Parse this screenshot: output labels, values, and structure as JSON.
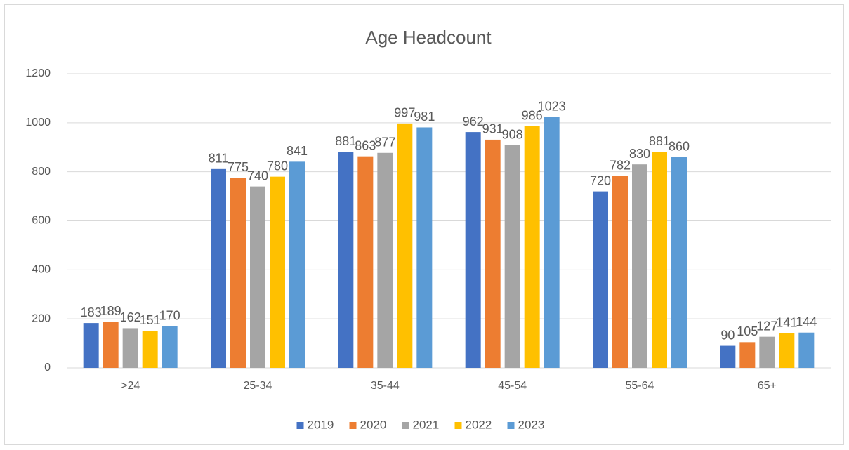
{
  "chart_data": {
    "type": "bar",
    "title": "Age Headcount",
    "categories": [
      ">24",
      "25-34",
      "35-44",
      "45-54",
      "55-64",
      "65+"
    ],
    "series": [
      {
        "name": "2019",
        "color": "#4472c4",
        "values": [
          183,
          811,
          881,
          962,
          720,
          90
        ]
      },
      {
        "name": "2020",
        "color": "#ed7d31",
        "values": [
          189,
          775,
          863,
          931,
          782,
          105
        ]
      },
      {
        "name": "2021",
        "color": "#a5a5a5",
        "values": [
          162,
          740,
          877,
          908,
          830,
          127
        ]
      },
      {
        "name": "2022",
        "color": "#ffc000",
        "values": [
          151,
          780,
          997,
          986,
          881,
          141
        ]
      },
      {
        "name": "2023",
        "color": "#5b9bd5",
        "values": [
          170,
          841,
          981,
          1023,
          860,
          144
        ]
      }
    ],
    "ylim": [
      0,
      1200
    ],
    "yticks": [
      0,
      200,
      400,
      600,
      800,
      1000,
      1200
    ],
    "grid": true,
    "legend": "bottom"
  }
}
